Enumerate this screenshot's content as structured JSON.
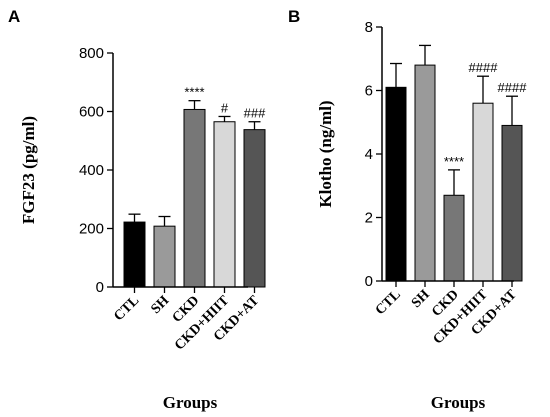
{
  "chart_data": [
    {
      "panel": "A",
      "type": "bar",
      "categories": [
        "CTL",
        "SH",
        "CKD",
        "CKD+HIIT",
        "CKD+AT"
      ],
      "values": [
        222,
        208,
        607,
        565,
        538
      ],
      "errors": [
        27,
        33,
        30,
        18,
        27
      ],
      "annotations": [
        "",
        "",
        "****",
        "#",
        "###"
      ],
      "colors": [
        "#000000",
        "#9a9a9a",
        "#777777",
        "#d8d8d8",
        "#555555"
      ],
      "xlabel": "Groups",
      "ylabel": "FGF23 (pg/ml)",
      "ylim": [
        0,
        800
      ],
      "yticks": [
        0,
        200,
        400,
        600,
        800
      ],
      "grid": false
    },
    {
      "panel": "B",
      "type": "bar",
      "categories": [
        "CTL",
        "SH",
        "CKD",
        "CKD+HIIT",
        "CKD+AT"
      ],
      "values": [
        6.1,
        6.8,
        2.7,
        5.6,
        4.9
      ],
      "errors": [
        0.75,
        0.62,
        0.8,
        0.85,
        0.92
      ],
      "annotations": [
        "",
        "",
        "****",
        "####",
        "####"
      ],
      "colors": [
        "#000000",
        "#9a9a9a",
        "#777777",
        "#d8d8d8",
        "#555555"
      ],
      "xlabel": "Groups",
      "ylabel": "Klotho (ng/ml)",
      "ylim": [
        0,
        8
      ],
      "yticks": [
        0,
        2,
        4,
        6,
        8
      ],
      "grid": false
    }
  ]
}
